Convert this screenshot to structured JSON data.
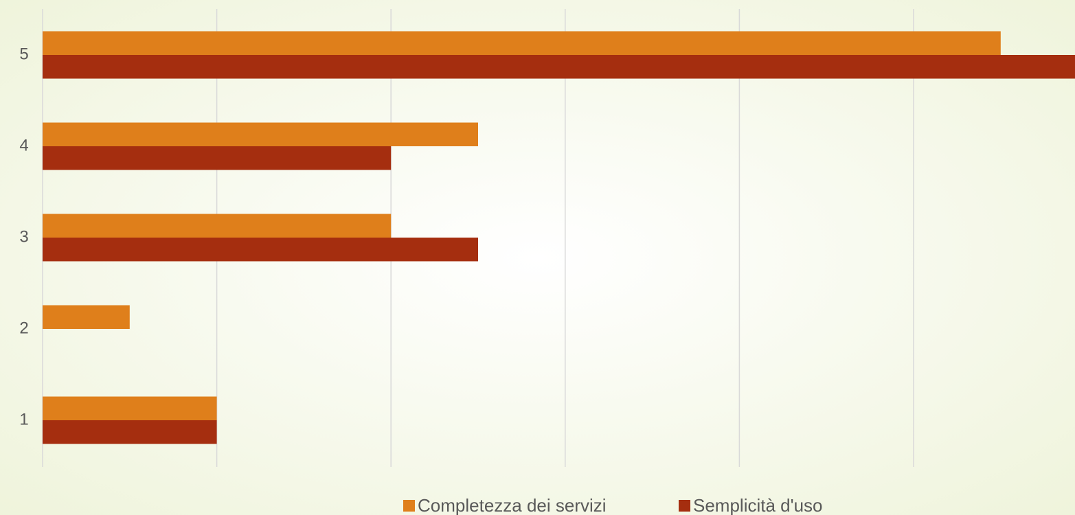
{
  "chart_data": {
    "type": "bar",
    "orientation": "horizontal",
    "categories": [
      "1",
      "2",
      "3",
      "4",
      "5"
    ],
    "series": [
      {
        "name": "Completezza dei servizi",
        "color": "#df7f1b",
        "values": [
          2,
          1,
          4,
          5,
          11
        ]
      },
      {
        "name": "Semplicità d'uso",
        "color": "#a52e0f",
        "values": [
          2,
          0,
          5,
          4,
          12
        ]
      }
    ],
    "xlim": [
      0,
      12
    ],
    "xticks": [
      0,
      2,
      4,
      6,
      8,
      10
    ],
    "grid": true,
    "legend": "bottom"
  }
}
